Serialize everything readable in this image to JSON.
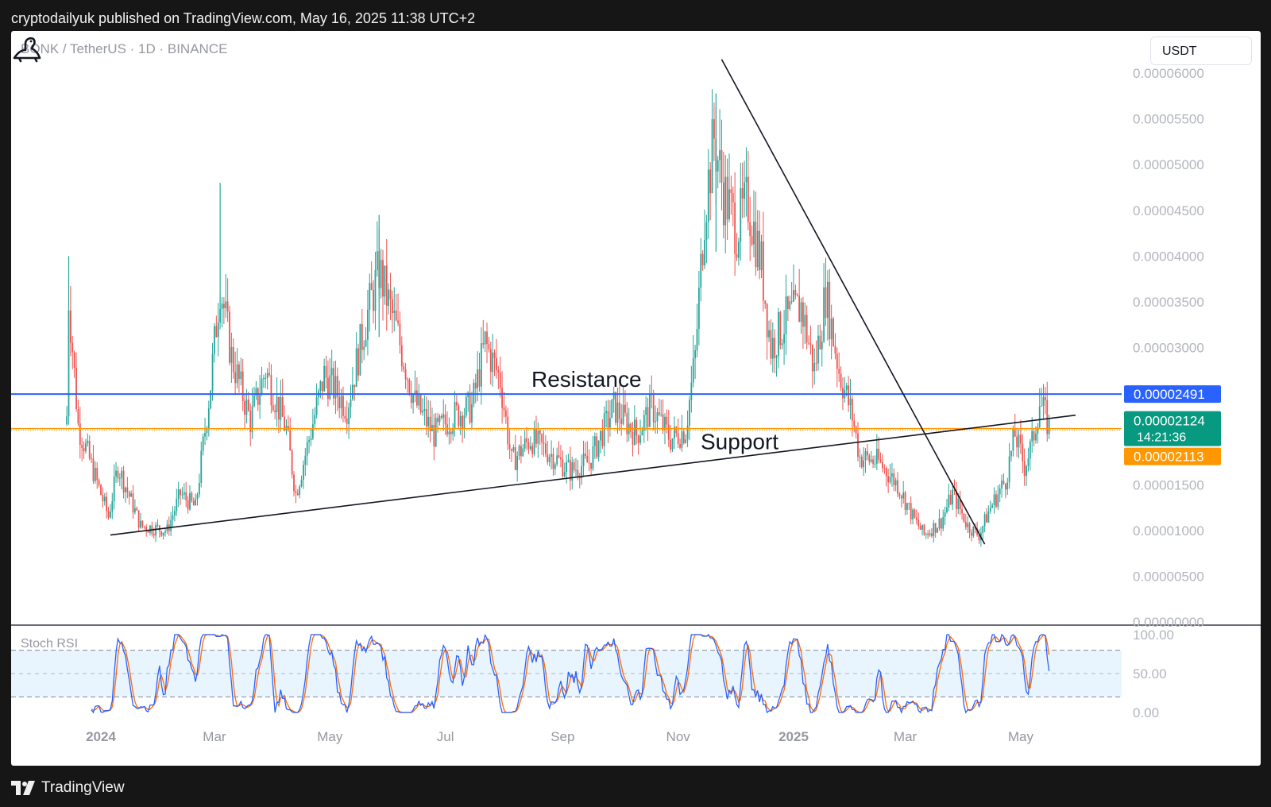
{
  "header": {
    "published": "cryptodailyuk published on TradingView.com, May 16, 2025 11:38 UTC+2"
  },
  "toolbar": {
    "currency": "USDT"
  },
  "footer": {
    "brand": "TradingView"
  },
  "colors": {
    "up": "#26a69a",
    "down": "#ef5350",
    "resistance": "#2962ff",
    "support_dotted": "#ff9800",
    "badge_last": "#089981",
    "badge_current": "#2962ff",
    "badge_support": "#ff9800",
    "stoch_k": "#2962ff",
    "stoch_d": "#ff6d00"
  },
  "chart_data": {
    "type": "candlestick",
    "title": "BONK / TetherUS · 1D · BINANCE",
    "y_axis": {
      "min": 0,
      "max": 6.3e-05,
      "ticks": [
        "0.00006000",
        "0.00005500",
        "0.00005000",
        "0.00004500",
        "0.00004000",
        "0.00003500",
        "0.00003000",
        "0.00001500",
        "0.00001000",
        "0.00000500",
        "0.00000000"
      ],
      "tick_values": [
        6e-05,
        5.5e-05,
        5e-05,
        4.5e-05,
        4e-05,
        3.5e-05,
        3e-05,
        1.5e-05,
        1e-05,
        5e-06,
        0
      ]
    },
    "x_axis": {
      "labels": [
        {
          "text": "2024",
          "bold": true,
          "date": "2024-01-01"
        },
        {
          "text": "Mar",
          "bold": false,
          "date": "2024-03-01"
        },
        {
          "text": "May",
          "bold": false,
          "date": "2024-05-01"
        },
        {
          "text": "Jul",
          "bold": false,
          "date": "2024-07-01"
        },
        {
          "text": "Sep",
          "bold": false,
          "date": "2024-09-01"
        },
        {
          "text": "Nov",
          "bold": false,
          "date": "2024-11-01"
        },
        {
          "text": "2025",
          "bold": true,
          "date": "2025-01-01"
        },
        {
          "text": "Mar",
          "bold": false,
          "date": "2025-03-01"
        },
        {
          "text": "May",
          "bold": false,
          "date": "2025-05-01"
        }
      ]
    },
    "price_path": [
      {
        "date": "2023-12-14",
        "price": 2.25e-05
      },
      {
        "date": "2023-12-15",
        "price": 3.55e-05
      },
      {
        "date": "2023-12-20",
        "price": 2.15e-05
      },
      {
        "date": "2023-12-28",
        "price": 1.65e-05
      },
      {
        "date": "2024-01-05",
        "price": 1.15e-05
      },
      {
        "date": "2024-01-10",
        "price": 1.7e-05
      },
      {
        "date": "2024-01-22",
        "price": 1.05e-05
      },
      {
        "date": "2024-02-05",
        "price": 1e-05
      },
      {
        "date": "2024-02-12",
        "price": 1.4e-05
      },
      {
        "date": "2024-02-20",
        "price": 1.25e-05
      },
      {
        "date": "2024-02-28",
        "price": 2.6e-05
      },
      {
        "date": "2024-03-04",
        "price": 3.7e-05
      },
      {
        "date": "2024-03-10",
        "price": 2.9e-05
      },
      {
        "date": "2024-03-20",
        "price": 2.2e-05
      },
      {
        "date": "2024-03-28",
        "price": 2.75e-05
      },
      {
        "date": "2024-04-08",
        "price": 2.1e-05
      },
      {
        "date": "2024-04-13",
        "price": 1.4e-05
      },
      {
        "date": "2024-04-20",
        "price": 2e-05
      },
      {
        "date": "2024-04-28",
        "price": 2.7e-05
      },
      {
        "date": "2024-05-10",
        "price": 2.35e-05
      },
      {
        "date": "2024-05-20",
        "price": 3.3e-05
      },
      {
        "date": "2024-05-27",
        "price": 3.85e-05
      },
      {
        "date": "2024-06-05",
        "price": 3.2e-05
      },
      {
        "date": "2024-06-15",
        "price": 2.4e-05
      },
      {
        "date": "2024-06-25",
        "price": 2.05e-05
      },
      {
        "date": "2024-07-05",
        "price": 2.25e-05
      },
      {
        "date": "2024-07-15",
        "price": 2.35e-05
      },
      {
        "date": "2024-07-22",
        "price": 3.05e-05
      },
      {
        "date": "2024-07-30",
        "price": 2.65e-05
      },
      {
        "date": "2024-08-05",
        "price": 1.75e-05
      },
      {
        "date": "2024-08-15",
        "price": 2e-05
      },
      {
        "date": "2024-08-25",
        "price": 1.85e-05
      },
      {
        "date": "2024-09-05",
        "price": 1.65e-05
      },
      {
        "date": "2024-09-15",
        "price": 1.75e-05
      },
      {
        "date": "2024-09-28",
        "price": 2.35e-05
      },
      {
        "date": "2024-10-10",
        "price": 2.05e-05
      },
      {
        "date": "2024-10-18",
        "price": 2.35e-05
      },
      {
        "date": "2024-10-28",
        "price": 2e-05
      },
      {
        "date": "2024-11-05",
        "price": 2.1e-05
      },
      {
        "date": "2024-11-10",
        "price": 2.9e-05
      },
      {
        "date": "2024-11-15",
        "price": 4.5e-05
      },
      {
        "date": "2024-11-20",
        "price": 5.3e-05
      },
      {
        "date": "2024-11-25",
        "price": 4.7e-05
      },
      {
        "date": "2024-12-02",
        "price": 4.3e-05
      },
      {
        "date": "2024-12-08",
        "price": 4.6e-05
      },
      {
        "date": "2024-12-15",
        "price": 3.9e-05
      },
      {
        "date": "2024-12-20",
        "price": 3e-05
      },
      {
        "date": "2024-12-28",
        "price": 3.3e-05
      },
      {
        "date": "2025-01-05",
        "price": 3.45e-05
      },
      {
        "date": "2025-01-12",
        "price": 2.75e-05
      },
      {
        "date": "2025-01-18",
        "price": 3.6e-05
      },
      {
        "date": "2025-01-25",
        "price": 2.75e-05
      },
      {
        "date": "2025-02-01",
        "price": 2.25e-05
      },
      {
        "date": "2025-02-05",
        "price": 1.8e-05
      },
      {
        "date": "2025-02-15",
        "price": 1.75e-05
      },
      {
        "date": "2025-02-25",
        "price": 1.5e-05
      },
      {
        "date": "2025-03-05",
        "price": 1.15e-05
      },
      {
        "date": "2025-03-11",
        "price": 9.5e-06
      },
      {
        "date": "2025-03-20",
        "price": 1.1e-05
      },
      {
        "date": "2025-03-26",
        "price": 1.4e-05
      },
      {
        "date": "2025-04-03",
        "price": 1.05e-05
      },
      {
        "date": "2025-04-09",
        "price": 9.5e-06
      },
      {
        "date": "2025-04-15",
        "price": 1.25e-05
      },
      {
        "date": "2025-04-23",
        "price": 1.55e-05
      },
      {
        "date": "2025-04-28",
        "price": 2.05e-05
      },
      {
        "date": "2025-05-03",
        "price": 1.7e-05
      },
      {
        "date": "2025-05-07",
        "price": 1.95e-05
      },
      {
        "date": "2025-05-11",
        "price": 2.4e-05
      },
      {
        "date": "2025-05-14",
        "price": 2.25e-05
      },
      {
        "date": "2025-05-16",
        "price": 2.12e-05
      }
    ],
    "drawings": {
      "resistance": {
        "label": "Resistance",
        "price": 2.491e-05
      },
      "support_level": {
        "label": "Support",
        "price": 2.113e-05
      },
      "support_trendline": {
        "start": {
          "date": "2024-01-06",
          "price": 9.5e-06
        },
        "end": {
          "date": "2025-05-30",
          "price": 2.26e-05
        }
      },
      "downtrend_line": {
        "start": {
          "date": "2024-11-24",
          "price": 6.15e-05
        },
        "end": {
          "date": "2025-04-12",
          "price": 8.5e-06
        }
      }
    },
    "price_labels": {
      "resistance": "0.00002491",
      "last_price": "0.00002124",
      "countdown": "14:21:36",
      "support": "0.00002113"
    },
    "indicator": {
      "name": "Stoch RSI",
      "ticks": [
        "100.00",
        "50.00",
        "0.00"
      ],
      "tick_values": [
        100,
        50,
        0
      ],
      "band": [
        20,
        80
      ]
    }
  }
}
